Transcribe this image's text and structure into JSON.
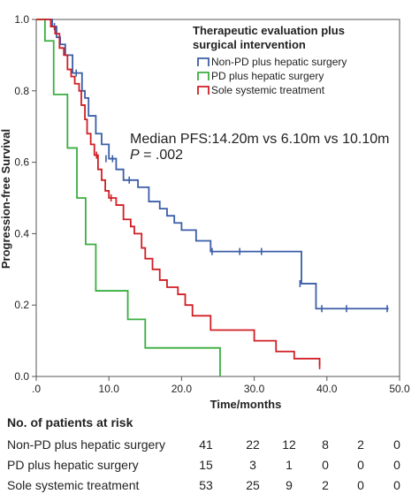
{
  "chart_data": {
    "type": "line",
    "subtype": "kaplan-meier",
    "title": "",
    "xlabel": "Time/months",
    "ylabel": "Progression-free Survival",
    "xlim": [
      0,
      50
    ],
    "ylim": [
      0,
      1.0
    ],
    "xticks": [
      ".0",
      "10.0",
      "20.0",
      "30.0",
      "40.0",
      "50.0"
    ],
    "yticks": [
      "0.0",
      "0.2",
      "0.4",
      "0.6",
      "0.8",
      "1.0"
    ],
    "grid": false,
    "legend": {
      "title_line1": "Therapeutic evaluation plus",
      "title_line2": "surgical intervention",
      "placement": "top-right"
    },
    "annotation": {
      "line1": "Median PFS:14.20m vs 6.10m vs 10.10m",
      "line2_p": "P",
      "line2_rest": " = .002"
    },
    "series": [
      {
        "name": "Non-PD plus hepatic surgery",
        "color": "#3b5ea8",
        "x": [
          0,
          2.2,
          2.8,
          3.3,
          4.0,
          5.0,
          6.3,
          6.7,
          7.2,
          8.2,
          9.0,
          10.0,
          11.0,
          12.0,
          14.0,
          15.5,
          17.0,
          18.0,
          19.0,
          20.0,
          22.0,
          24.0,
          36.5,
          38.5,
          48.5
        ],
        "y": [
          1.0,
          0.98,
          0.95,
          0.93,
          0.9,
          0.85,
          0.8,
          0.78,
          0.73,
          0.68,
          0.65,
          0.61,
          0.58,
          0.55,
          0.53,
          0.49,
          0.47,
          0.45,
          0.43,
          0.41,
          0.38,
          0.35,
          0.26,
          0.19,
          0.19
        ],
        "censored": [
          [
            2.5,
            0.98
          ],
          [
            5.5,
            0.85
          ],
          [
            9.6,
            0.61
          ],
          [
            10.5,
            0.61
          ],
          [
            12.8,
            0.55
          ],
          [
            24.2,
            0.35
          ],
          [
            28.0,
            0.35
          ],
          [
            31.0,
            0.35
          ],
          [
            36.3,
            0.26
          ],
          [
            39.3,
            0.19
          ],
          [
            42.7,
            0.19
          ],
          [
            48.3,
            0.19
          ]
        ]
      },
      {
        "name": "PD plus hepatic surgery",
        "color": "#3aae3f",
        "x": [
          0,
          1.2,
          2.4,
          4.3,
          5.6,
          6.8,
          8.2,
          12.6,
          15.0,
          25.3
        ],
        "y": [
          1.0,
          0.94,
          0.79,
          0.64,
          0.5,
          0.37,
          0.24,
          0.16,
          0.08,
          0.0
        ],
        "censored": []
      },
      {
        "name": "Sole systemic treatment",
        "color": "#d01f25",
        "x": [
          0,
          2.0,
          2.6,
          3.2,
          3.8,
          4.3,
          4.8,
          5.3,
          5.9,
          6.2,
          6.7,
          7.0,
          7.5,
          8.0,
          8.5,
          9.0,
          9.5,
          10.0,
          11.0,
          12.0,
          13.0,
          13.5,
          14.5,
          15.0,
          16.0,
          17.0,
          18.0,
          19.5,
          20.5,
          21.5,
          24.0,
          30.0,
          33.0,
          35.5,
          39.0
        ],
        "y": [
          1.0,
          0.98,
          0.96,
          0.92,
          0.9,
          0.86,
          0.84,
          0.82,
          0.8,
          0.76,
          0.72,
          0.68,
          0.65,
          0.62,
          0.58,
          0.55,
          0.52,
          0.5,
          0.48,
          0.44,
          0.42,
          0.4,
          0.36,
          0.33,
          0.3,
          0.27,
          0.25,
          0.23,
          0.2,
          0.17,
          0.13,
          0.1,
          0.07,
          0.05,
          0.03
        ],
        "censored": [
          [
            8.3,
            0.62
          ],
          [
            10.3,
            0.5
          ],
          [
            39.0,
            0.03
          ]
        ]
      }
    ]
  },
  "risk_table": {
    "title": "No. of patients at risk",
    "rows": [
      {
        "label": "Non-PD plus hepatic surgery",
        "values": [
          "41",
          "22",
          "12",
          "8",
          "2",
          "0"
        ]
      },
      {
        "label": "PD plus hepatic surgery",
        "values": [
          "15",
          "3",
          "1",
          "0",
          "0",
          "0"
        ]
      },
      {
        "label": "Sole systemic treatment",
        "values": [
          "53",
          "25",
          "9",
          "2",
          "0",
          "0"
        ]
      }
    ]
  }
}
